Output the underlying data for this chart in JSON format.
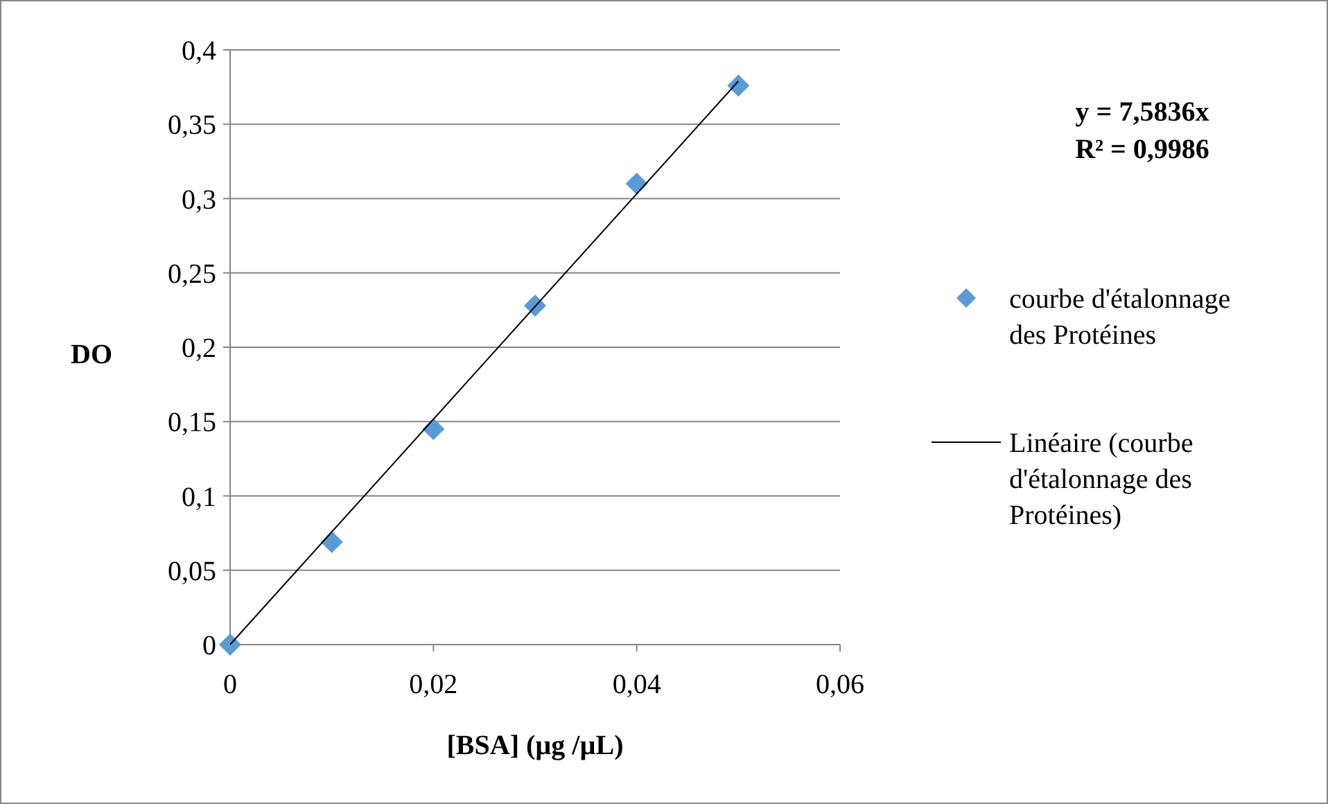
{
  "chart_data": {
    "type": "scatter",
    "xlabel": "[BSA] (µg /µL)",
    "ylabel": "DO",
    "x": [
      0,
      0.01,
      0.02,
      0.03,
      0.04,
      0.05
    ],
    "series": [
      {
        "name": "courbe d'étalonnage des Protéines",
        "color": "#5b9bd5",
        "marker": "diamond",
        "values": [
          0,
          0.069,
          0.145,
          0.228,
          0.31,
          0.376
        ]
      },
      {
        "name": "Linéaire (courbe d'étalonnage des Protéines)",
        "type": "line",
        "color": "#000000",
        "marker": "none",
        "x": [
          0,
          0.05
        ],
        "values": [
          0,
          0.379
        ]
      }
    ],
    "xlim": [
      0,
      0.06
    ],
    "xticks": [
      0,
      {
        "value": 0.02,
        "label": "0,02"
      },
      {
        "value": 0.04,
        "label": "0,04"
      },
      {
        "value": 0.06,
        "label": "0,06"
      }
    ],
    "ylim": [
      0,
      0.4
    ],
    "yticks": [
      0,
      {
        "value": 0.05,
        "label": "0,05"
      },
      {
        "value": 0.1,
        "label": "0,1"
      },
      {
        "value": 0.15,
        "label": "0,15"
      },
      {
        "value": 0.2,
        "label": "0,2"
      },
      {
        "value": 0.25,
        "label": "0,25"
      },
      {
        "value": 0.3,
        "label": "0,3"
      },
      {
        "value": 0.35,
        "label": "0,35"
      },
      {
        "value": 0.4,
        "label": "0,4"
      }
    ],
    "grid": "y",
    "legend": "right",
    "annotations": [
      "y = 7,5836x",
      "R² = 0,9986"
    ]
  }
}
